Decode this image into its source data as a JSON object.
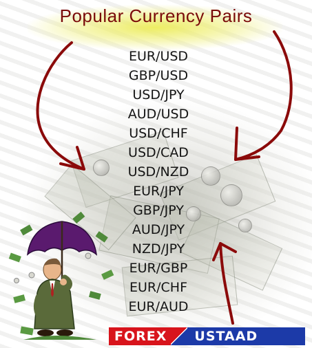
{
  "header": {
    "title": "Popular Currency Pairs"
  },
  "currency_pairs": [
    "EUR/USD",
    "GBP/USD",
    "USD/JPY",
    "AUD/USD",
    "USD/CHF",
    "USD/CAD",
    "USD/NZD",
    "EUR/JPY",
    "GBP/JPY",
    "AUD/JPY",
    "NZD/JPY",
    "EUR/GBP",
    "EUR/CHF",
    "EUR/AUD"
  ],
  "logo": {
    "left_text": "FOREX",
    "right_text": "USTAAD"
  },
  "colors": {
    "title": "#7a0a0a",
    "header_highlight": "#ecec5a",
    "arrow": "#8b0a0a",
    "logo_red": "#d8141c",
    "logo_blue": "#1c3aa8",
    "umbrella": "#5a1a6e",
    "money_green": "#4f8a3a"
  },
  "icons": {
    "arrows": "hand-drawn-red-arrows",
    "character": "businessman-with-umbrella-under-money-rain",
    "background": "faded-banknotes-and-coins"
  }
}
